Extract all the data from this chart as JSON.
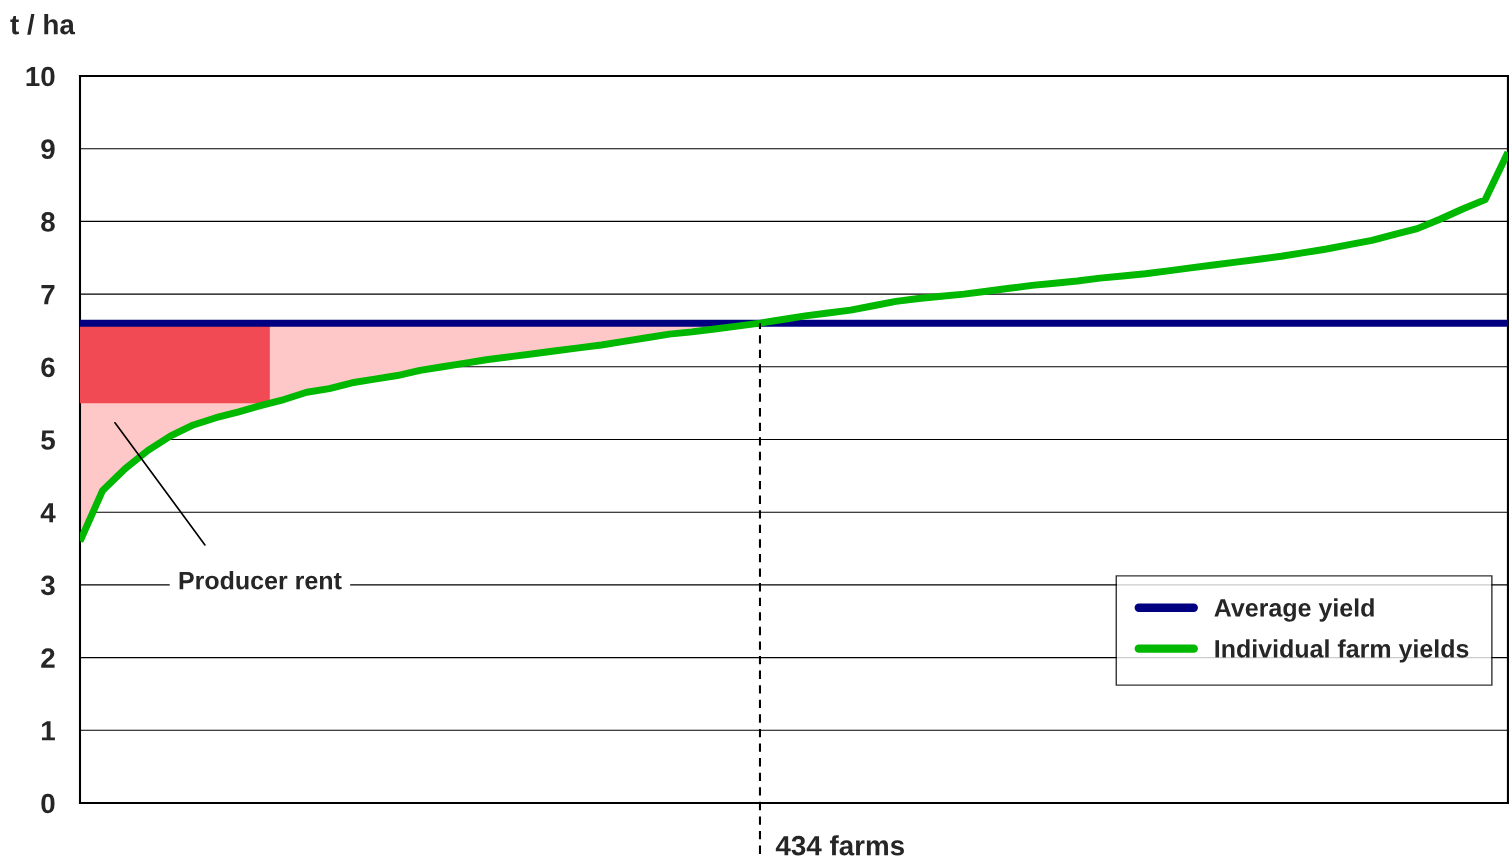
{
  "chart_data": {
    "type": "line",
    "ylabel": "t / ha",
    "categories": [
      null,
      null,
      null,
      null,
      null,
      null,
      null,
      null,
      null,
      null,
      null,
      null,
      null,
      null,
      null,
      null,
      null,
      null,
      null,
      null,
      null,
      null,
      null,
      null,
      null,
      null,
      null,
      null,
      null,
      null,
      null,
      null,
      null,
      null,
      null,
      null,
      null,
      null,
      null,
      null,
      null,
      null,
      null,
      null,
      null,
      null,
      null,
      null,
      null,
      null,
      null,
      null,
      null,
      null,
      null,
      null,
      null,
      null,
      null,
      null,
      null,
      null,
      null,
      null
    ],
    "series": [
      {
        "name": "Average yield",
        "color": "#000080",
        "values": [
          6.6,
          6.6,
          6.6,
          6.6,
          6.6,
          6.6,
          6.6,
          6.6,
          6.6,
          6.6,
          6.6,
          6.6,
          6.6,
          6.6,
          6.6,
          6.6,
          6.6,
          6.6,
          6.6,
          6.6,
          6.6,
          6.6,
          6.6,
          6.6,
          6.6,
          6.6,
          6.6,
          6.6,
          6.6,
          6.6,
          6.6,
          6.6,
          6.6,
          6.6,
          6.6,
          6.6,
          6.6,
          6.6,
          6.6,
          6.6,
          6.6,
          6.6,
          6.6,
          6.6,
          6.6,
          6.6,
          6.6,
          6.6,
          6.6,
          6.6,
          6.6,
          6.6,
          6.6,
          6.6,
          6.6,
          6.6,
          6.6,
          6.6,
          6.6,
          6.6,
          6.6,
          6.6,
          6.6,
          6.6
        ]
      },
      {
        "name": "Individual farm yields",
        "color": "#00b800",
        "values": [
          3.6,
          4.3,
          4.6,
          4.85,
          5.05,
          5.2,
          5.3,
          5.38,
          5.47,
          5.55,
          5.65,
          5.7,
          5.78,
          5.83,
          5.88,
          5.95,
          6.0,
          6.05,
          6.1,
          6.14,
          6.18,
          6.22,
          6.26,
          6.3,
          6.35,
          6.4,
          6.45,
          6.48,
          6.52,
          6.56,
          6.6,
          6.65,
          6.7,
          6.74,
          6.78,
          6.84,
          6.9,
          6.94,
          6.97,
          7.0,
          7.04,
          7.08,
          7.12,
          7.15,
          7.18,
          7.22,
          7.25,
          7.28,
          7.32,
          7.36,
          7.4,
          7.44,
          7.48,
          7.52,
          7.57,
          7.62,
          7.68,
          7.74,
          7.82,
          7.9,
          8.03,
          8.17,
          8.3,
          8.95
        ]
      }
    ],
    "bands": [
      {
        "axis": "y",
        "from": 5.5,
        "to": 6.6,
        "color": "#f24a55"
      }
    ],
    "annotations": [
      "Producer rent",
      "434 farms"
    ],
    "ylim": [
      0,
      10
    ],
    "yticks": [
      0,
      1,
      2,
      3,
      4,
      5,
      6,
      7,
      8,
      9,
      10
    ],
    "tick_labels": "y",
    "grid": "y",
    "legend": "bottom right"
  }
}
